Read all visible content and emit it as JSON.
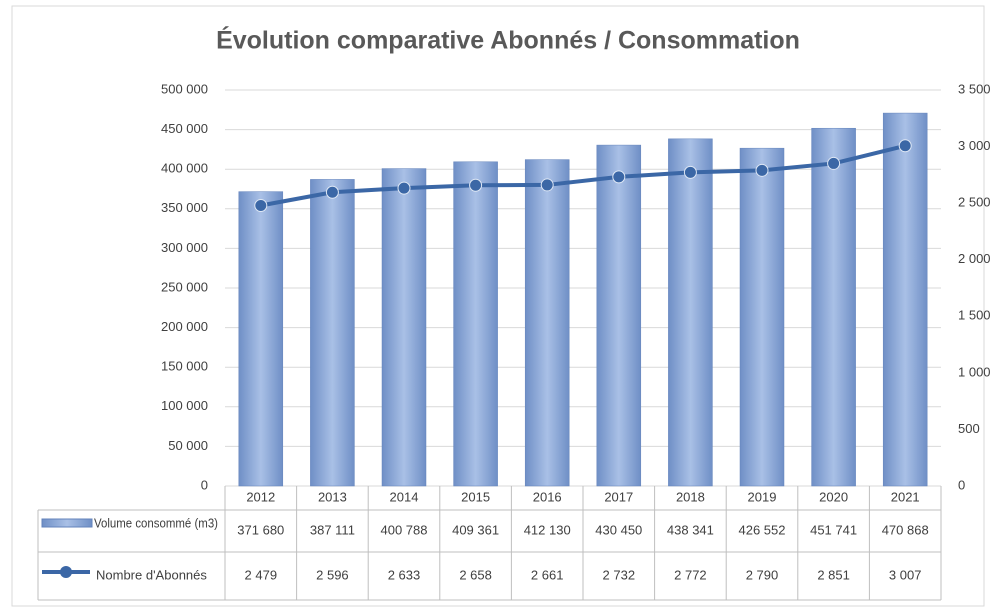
{
  "chart_data": {
    "type": "bar-line",
    "title": "Évolution comparative Abonnés / Consommation",
    "categories": [
      "2012",
      "2013",
      "2014",
      "2015",
      "2016",
      "2017",
      "2018",
      "2019",
      "2020",
      "2021"
    ],
    "series": [
      {
        "name": "Volume consommé (m3)",
        "color": "#7f9fd2",
        "type": "bar",
        "values": [
          371680,
          387111,
          400788,
          409361,
          412130,
          430450,
          438341,
          426552,
          451741,
          470868
        ],
        "value_labels": [
          "371 680",
          "387 111",
          "400 788",
          "409 361",
          "412 130",
          "430 450",
          "438 341",
          "426 552",
          "451 741",
          "470 868"
        ]
      },
      {
        "name": "Nombre d'Abonnés",
        "color": "#3b67a6",
        "type": "line",
        "axis": "y2",
        "values": [
          2479,
          2596,
          2633,
          2658,
          2661,
          2732,
          2772,
          2790,
          2851,
          3007
        ],
        "value_labels": [
          "2 479",
          "2 596",
          "2 633",
          "2 658",
          "2 661",
          "2 732",
          "2 772",
          "2 790",
          "2 851",
          "3 007"
        ]
      }
    ],
    "ylim": [
      0,
      500000
    ],
    "yticks": [
      0,
      {
        "value": 50000,
        "label": "50 000"
      },
      {
        "value": 100000,
        "label": "100 000"
      },
      {
        "value": 150000,
        "label": "150 000"
      },
      {
        "value": 200000,
        "label": "200 000"
      },
      {
        "value": 250000,
        "label": "250 000"
      },
      {
        "value": 300000,
        "label": "300 000"
      },
      {
        "value": 350000,
        "label": "350 000"
      },
      {
        "value": 400000,
        "label": "400 000"
      },
      {
        "value": 450000,
        "label": "450 000"
      },
      {
        "value": 500000,
        "label": "500 000"
      }
    ],
    "y2lim": [
      0,
      3500
    ],
    "y2ticks": [
      0,
      500,
      {
        "value": 1000,
        "label": "1 000"
      },
      {
        "value": 1500,
        "label": "1 500"
      },
      {
        "value": 2000,
        "label": "2 000"
      },
      {
        "value": 2500,
        "label": "2 500"
      },
      {
        "value": 3000,
        "label": "3 000"
      },
      {
        "value": 3500,
        "label": "3 500"
      }
    ],
    "grid": true
  }
}
